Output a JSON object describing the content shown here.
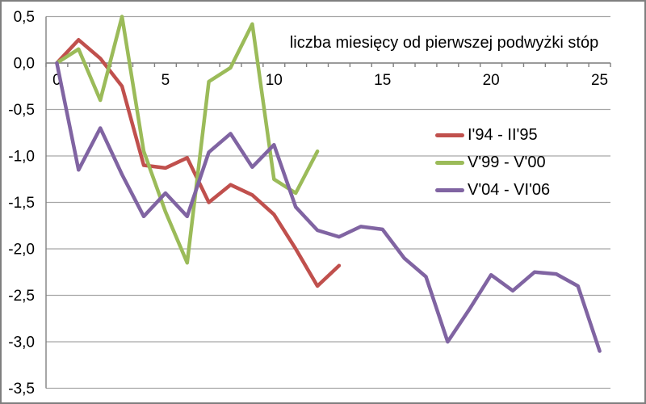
{
  "colors": {
    "background": "#ffffff",
    "border": "#7f7f7f",
    "axis": "#808080",
    "gridline": "#a6a6a6",
    "text": "#000000"
  },
  "chart_data": {
    "type": "line",
    "title": "liczba miesięcy od pierwszej podwyżki stóp",
    "title_meaning_note": "number of months since first rate hike",
    "xlabel": "",
    "ylabel": "",
    "xlim": [
      -0.5,
      25.5
    ],
    "ylim": [
      -3.5,
      0.5
    ],
    "grid": true,
    "legend_position": "middle-right",
    "x_tick_values": [
      0,
      5,
      10,
      15,
      20,
      25
    ],
    "x_tick_labels": [
      "0",
      "5",
      "10",
      "15",
      "20",
      "25"
    ],
    "y_tick_values": [
      0.5,
      0.0,
      -0.5,
      -1.0,
      -1.5,
      -2.0,
      -2.5,
      -3.0,
      -3.5
    ],
    "y_tick_labels": [
      "0,5",
      "0,0",
      "-0,5",
      "-1,0",
      "-1,5",
      "-2,0",
      "-2,5",
      "-3,0",
      "-3,5"
    ],
    "series": [
      {
        "name": "I'94 - II'95",
        "color": "#C0504D",
        "x_start": 0,
        "values": [
          0.0,
          0.25,
          0.05,
          -0.25,
          -1.1,
          -1.13,
          -1.02,
          -1.5,
          -1.31,
          -1.42,
          -1.63,
          -2.0,
          -2.4,
          -2.18
        ]
      },
      {
        "name": "V'99 - V'00",
        "color": "#9BBB59",
        "x_start": 0,
        "values": [
          0.0,
          0.15,
          -0.4,
          0.5,
          -0.95,
          -1.6,
          -2.15,
          -0.2,
          -0.05,
          0.42,
          -1.25,
          -1.4,
          -0.95
        ]
      },
      {
        "name": "V'04 - VI'06",
        "color": "#8064A2",
        "x_start": 0,
        "values": [
          0.0,
          -1.15,
          -0.7,
          -1.2,
          -1.65,
          -1.4,
          -1.65,
          -0.96,
          -0.76,
          -1.12,
          -0.88,
          -1.55,
          -1.8,
          -1.87,
          -1.76,
          -1.79,
          -2.1,
          -2.3,
          -3.0,
          -2.65,
          -2.28,
          -2.45,
          -2.25,
          -2.27,
          -2.4,
          -3.1
        ]
      }
    ]
  }
}
